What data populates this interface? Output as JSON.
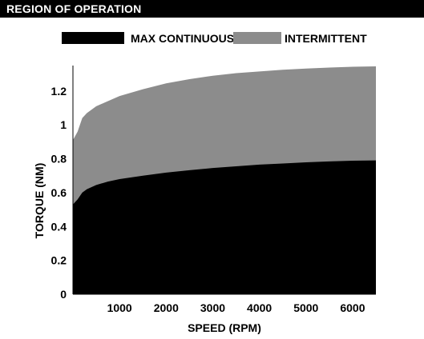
{
  "header": {
    "title": "REGION OF OPERATION"
  },
  "colors": {
    "max_continuous": "#000000",
    "intermittent": "#8c8c8c"
  },
  "chart_data": {
    "type": "area",
    "title": "REGION OF OPERATION",
    "xlabel": "SPEED (RPM)",
    "ylabel": "TORQUE (NM)",
    "xlim": [
      0,
      6500
    ],
    "ylim": [
      0,
      1.35
    ],
    "xticks": [
      1000,
      2000,
      3000,
      4000,
      5000,
      6000
    ],
    "xtick_labels": [
      "1000",
      "2000",
      "3000",
      "4000",
      "5000",
      "6000"
    ],
    "yticks": [
      0,
      0.2,
      0.4,
      0.6,
      0.8,
      1,
      1.2
    ],
    "ytick_labels": [
      "0",
      "0.2",
      "0.4",
      "0.6",
      "0.8",
      "1",
      "1.2"
    ],
    "grid": false,
    "legend_position": "top",
    "x": [
      0,
      100,
      200,
      300,
      500,
      750,
      1000,
      1500,
      2000,
      2500,
      3000,
      3500,
      4000,
      4500,
      5000,
      5500,
      6000,
      6500
    ],
    "series": [
      {
        "name": "MAX CONTINUOUS",
        "values": [
          0.53,
          0.56,
          0.6,
          0.62,
          0.645,
          0.665,
          0.68,
          0.7,
          0.718,
          0.732,
          0.745,
          0.755,
          0.765,
          0.772,
          0.779,
          0.784,
          0.788,
          0.79
        ]
      },
      {
        "name": "INTERMITTENT",
        "values": [
          0.91,
          0.96,
          1.04,
          1.07,
          1.11,
          1.14,
          1.17,
          1.21,
          1.245,
          1.27,
          1.29,
          1.305,
          1.315,
          1.325,
          1.332,
          1.338,
          1.343,
          1.345
        ]
      }
    ]
  }
}
